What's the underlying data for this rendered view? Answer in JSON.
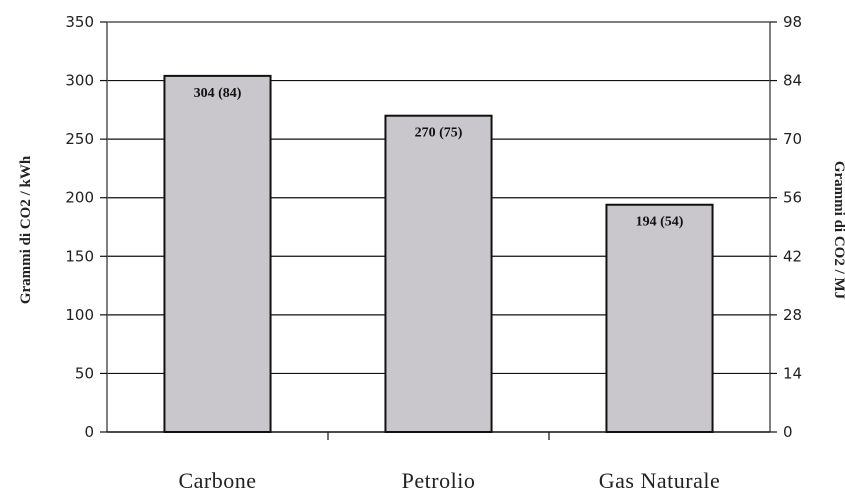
{
  "chart_data": {
    "type": "bar",
    "categories": [
      "Carbone",
      "Petrolio",
      "Gas Naturale"
    ],
    "values": [
      304,
      270,
      194
    ],
    "data_labels": [
      "304 (84)",
      "270 (75)",
      "194 (54)"
    ],
    "ylabel": "Grammi di CO2 / kWh",
    "ylabel_right": "Grammi di CO2 / MJ",
    "ylim": [
      0,
      350
    ],
    "yticks": [
      "0",
      "50",
      "100",
      "150",
      "200",
      "250",
      "300",
      "350"
    ],
    "ylim_right": [
      0,
      98
    ],
    "yticks_right": [
      "0",
      "14",
      "28",
      "42",
      "56",
      "70",
      "84",
      "98"
    ],
    "grid": true,
    "colors": {
      "bar_fill": "#c9c7cb",
      "bar_stroke": "#111111",
      "grid": "#111111",
      "frame": "#555555"
    }
  }
}
